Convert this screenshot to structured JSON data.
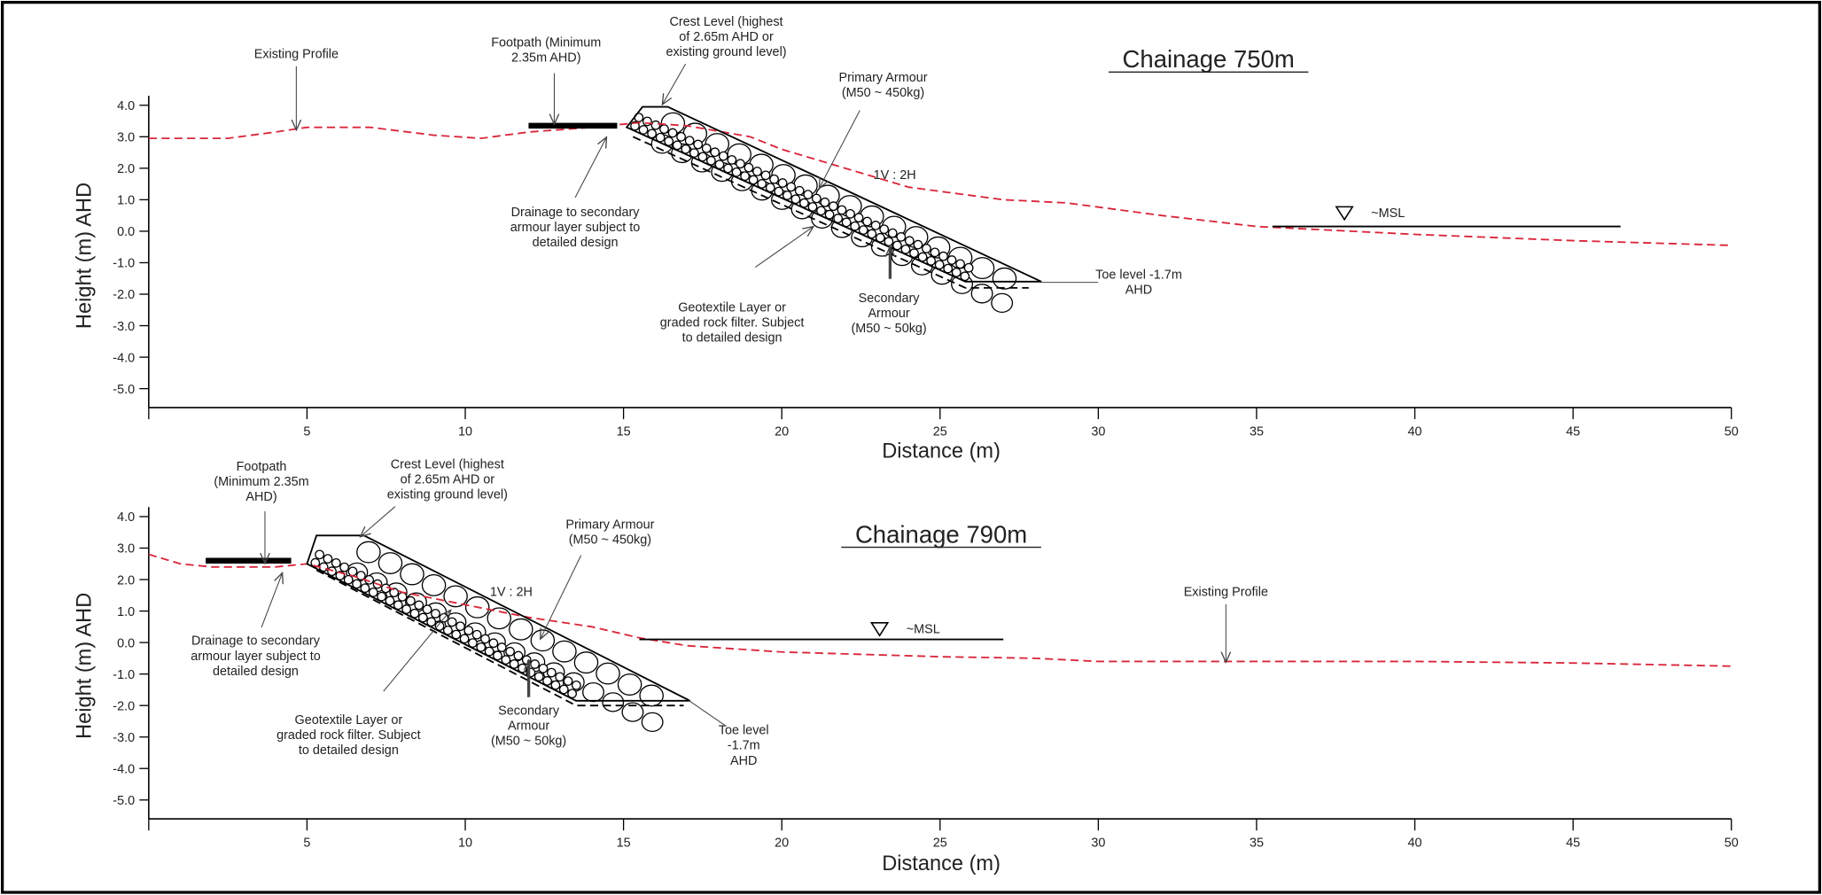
{
  "chart_data": [
    {
      "type": "line",
      "title": "Chainage 750m",
      "xlabel": "Distance (m)",
      "ylabel": "Height (m) AHD",
      "xlim": [
        0,
        50
      ],
      "xticks": [
        5,
        10,
        15,
        20,
        25,
        30,
        35,
        40,
        45,
        50
      ],
      "ylim": [
        -5.6,
        4.3
      ],
      "yticks": [
        {
          "value": 4,
          "label": "4.0"
        },
        {
          "value": 3,
          "label": "3.0"
        },
        {
          "value": 2,
          "label": "2.0"
        },
        {
          "value": 1,
          "label": "1.0"
        },
        {
          "value": 0,
          "label": "0.0"
        },
        {
          "value": -1,
          "label": "-1.0"
        },
        {
          "value": -2,
          "label": "-2.0"
        },
        {
          "value": -3,
          "label": "-3.0"
        },
        {
          "value": -4,
          "label": "-4.0"
        },
        {
          "value": -5,
          "label": "-5.0"
        }
      ],
      "series": [
        {
          "color": "#d9263a",
          "dash": true,
          "x": [
            0,
            2.5,
            4,
            5,
            7,
            9,
            10.5,
            12,
            14,
            15.5,
            17,
            19,
            20,
            22,
            24,
            27,
            29,
            32,
            35,
            40,
            45,
            50
          ],
          "values": [
            2.95,
            2.95,
            3.15,
            3.3,
            3.3,
            3.05,
            2.95,
            3.15,
            3.3,
            3.45,
            3.35,
            3.0,
            2.6,
            2.0,
            1.4,
            1.0,
            0.9,
            0.5,
            0.15,
            -0.1,
            -0.3,
            -0.45
          ]
        },
        {
          "color": "#000000",
          "dash": false,
          "x": [
            35.5,
            46.5
          ],
          "values": [
            0.15,
            0.15
          ]
        },
        {
          "color": "#000000",
          "dash": false,
          "width": 5,
          "x": [
            12,
            14.8
          ],
          "values": [
            3.35,
            3.35
          ]
        },
        {
          "color": "#000000",
          "dash": false,
          "structure": true,
          "x": [
            15.1,
            15.6,
            16.4,
            28.2,
            25.8,
            15.1
          ],
          "values": [
            3.3,
            3.95,
            3.95,
            -1.6,
            -1.6,
            3.3
          ]
        },
        {
          "color": "#000000",
          "dash": true,
          "x": [
            15.3,
            25.8,
            27.8
          ],
          "values": [
            3.0,
            -1.8,
            -1.8
          ]
        }
      ],
      "annotations": [
        "Existing Profile",
        "Footpath (Minimum\n2.35m AHD)",
        "Crest Level (highest\nof 2.65m AHD or\nexisting ground level)",
        "Primary Armour\n(M50 ~ 450kg)",
        "1V : 2H",
        "~MSL",
        "Drainage to secondary\narmour layer subject to\ndetailed design",
        "Geotextile Layer or\ngraded rock filter. Subject\nto detailed design",
        "Secondary\nArmour\n(M50 ~ 50kg)",
        "Toe level -1.7m\nAHD"
      ]
    },
    {
      "type": "line",
      "title": "Chainage 790m",
      "xlabel": "Distance (m)",
      "ylabel": "Height (m) AHD",
      "xlim": [
        0,
        50
      ],
      "xticks": [
        5,
        10,
        15,
        20,
        25,
        30,
        35,
        40,
        45,
        50
      ],
      "ylim": [
        -5.6,
        4.3
      ],
      "yticks": [
        {
          "value": 4,
          "label": "4.0"
        },
        {
          "value": 3,
          "label": "3.0"
        },
        {
          "value": 2,
          "label": "2.0"
        },
        {
          "value": 1,
          "label": "1.0"
        },
        {
          "value": 0,
          "label": "0.0"
        },
        {
          "value": -1,
          "label": "-1.0"
        },
        {
          "value": -2,
          "label": "-2.0"
        },
        {
          "value": -3,
          "label": "-3.0"
        },
        {
          "value": -4,
          "label": "-4.0"
        },
        {
          "value": -5,
          "label": "-5.0"
        }
      ],
      "series": [
        {
          "color": "#d9263a",
          "dash": true,
          "x": [
            0,
            1,
            2,
            4,
            5,
            6.5,
            8,
            10,
            12,
            14,
            15.5,
            17,
            20,
            25,
            28,
            30,
            35,
            40,
            45,
            50
          ],
          "values": [
            2.8,
            2.5,
            2.4,
            2.4,
            2.5,
            2.1,
            1.6,
            1.2,
            0.8,
            0.5,
            0.15,
            -0.1,
            -0.3,
            -0.45,
            -0.5,
            -0.6,
            -0.6,
            -0.6,
            -0.65,
            -0.75
          ]
        },
        {
          "color": "#000000",
          "dash": false,
          "x": [
            15.5,
            27
          ],
          "values": [
            0.1,
            0.1
          ]
        },
        {
          "color": "#000000",
          "dash": false,
          "width": 5,
          "x": [
            1.8,
            4.5
          ],
          "values": [
            2.6,
            2.6
          ]
        },
        {
          "color": "#000000",
          "dash": false,
          "structure": true,
          "x": [
            5,
            5.3,
            6.8,
            17.1,
            13.5,
            5
          ],
          "values": [
            2.5,
            3.4,
            3.4,
            -1.85,
            -1.85,
            2.5
          ]
        },
        {
          "color": "#000000",
          "dash": true,
          "x": [
            5.3,
            13.5,
            16.9
          ],
          "values": [
            2.3,
            -2.0,
            -2.0
          ]
        }
      ],
      "annotations": [
        "Footpath\n(Minimum 2.35m\nAHD)",
        "Crest Level (highest\nof 2.65m AHD or\nexisting ground level)",
        "Primary Armour\n(M50 ~ 450kg)",
        "1V : 2H",
        "~MSL",
        "Existing Profile",
        "Drainage to secondary\narmour layer subject to\ndetailed design",
        "Geotextile Layer or\ngraded rock filter. Subject\nto detailed design",
        "Secondary\nArmour\n(M50 ~ 50kg)",
        "Toe level\n-1.7m\nAHD"
      ]
    }
  ]
}
